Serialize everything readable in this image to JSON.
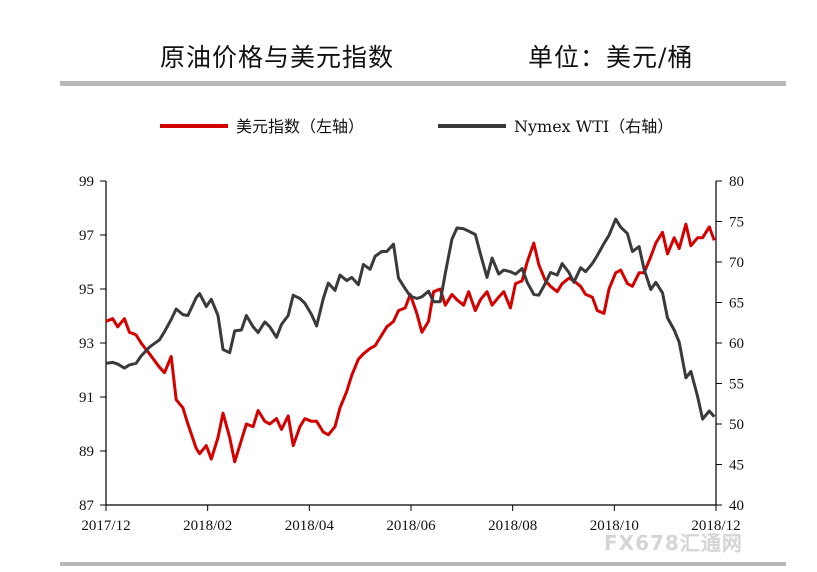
{
  "header": {
    "title": "原油价格与美元指数",
    "unit": "单位：美元/桶"
  },
  "watermark": "FX678汇通网",
  "colors": {
    "usd_index": "#d40000",
    "wti": "#3a3a3a",
    "axis": "#000000",
    "rule": "#b8b8b8"
  },
  "chart_data": {
    "type": "line",
    "x_ticks": [
      "2017/12",
      "2018/02",
      "2018/04",
      "2018/06",
      "2018/08",
      "2018/10",
      "2018/12"
    ],
    "xlim": [
      "2017-12-01",
      "2018-12-01"
    ],
    "y_left": {
      "lim": [
        87,
        99
      ],
      "ticks": [
        87,
        89,
        91,
        93,
        95,
        97,
        99
      ]
    },
    "y_right": {
      "lim": [
        40,
        80
      ],
      "ticks": [
        40,
        45,
        50,
        55,
        60,
        65,
        70,
        75,
        80
      ]
    },
    "grid": false,
    "legend": "top",
    "series": [
      {
        "name": "美元指数（左轴）",
        "axis": "left",
        "x": [
          "2017-12-01",
          "2017-12-05",
          "2017-12-08",
          "2017-12-12",
          "2017-12-15",
          "2017-12-19",
          "2017-12-22",
          "2017-12-27",
          "2018-01-02",
          "2018-01-05",
          "2018-01-09",
          "2018-01-12",
          "2018-01-16",
          "2018-01-19",
          "2018-01-24",
          "2018-01-26",
          "2018-01-30",
          "2018-02-02",
          "2018-02-06",
          "2018-02-09",
          "2018-02-13",
          "2018-02-16",
          "2018-02-20",
          "2018-02-23",
          "2018-02-27",
          "2018-03-02",
          "2018-03-06",
          "2018-03-09",
          "2018-03-13",
          "2018-03-16",
          "2018-03-20",
          "2018-03-23",
          "2018-03-27",
          "2018-03-30",
          "2018-04-03",
          "2018-04-06",
          "2018-04-10",
          "2018-04-13",
          "2018-04-17",
          "2018-04-20",
          "2018-04-24",
          "2018-04-27",
          "2018-05-01",
          "2018-05-04",
          "2018-05-08",
          "2018-05-11",
          "2018-05-15",
          "2018-05-18",
          "2018-05-22",
          "2018-05-25",
          "2018-05-29",
          "2018-06-01",
          "2018-06-05",
          "2018-06-08",
          "2018-06-12",
          "2018-06-15",
          "2018-06-19",
          "2018-06-22",
          "2018-06-26",
          "2018-06-29",
          "2018-07-03",
          "2018-07-06",
          "2018-07-10",
          "2018-07-13",
          "2018-07-17",
          "2018-07-20",
          "2018-07-24",
          "2018-07-27",
          "2018-07-31",
          "2018-08-03",
          "2018-08-07",
          "2018-08-10",
          "2018-08-14",
          "2018-08-17",
          "2018-08-21",
          "2018-08-24",
          "2018-08-28",
          "2018-08-31",
          "2018-09-04",
          "2018-09-07",
          "2018-09-11",
          "2018-09-14",
          "2018-09-18",
          "2018-09-21",
          "2018-09-25",
          "2018-09-28",
          "2018-10-02",
          "2018-10-05",
          "2018-10-09",
          "2018-10-12",
          "2018-10-16",
          "2018-10-19",
          "2018-10-23",
          "2018-10-26",
          "2018-10-30",
          "2018-11-02",
          "2018-11-06",
          "2018-11-09",
          "2018-11-13",
          "2018-11-16",
          "2018-11-20",
          "2018-11-23",
          "2018-11-27",
          "2018-11-30"
        ],
        "values": [
          93.8,
          93.9,
          93.6,
          93.9,
          93.4,
          93.3,
          93.0,
          92.6,
          92.1,
          91.9,
          92.5,
          90.9,
          90.6,
          90.0,
          89.1,
          88.9,
          89.2,
          88.7,
          89.5,
          90.4,
          89.5,
          88.6,
          89.4,
          90.0,
          89.9,
          90.5,
          90.1,
          90.0,
          90.2,
          89.8,
          90.3,
          89.2,
          89.9,
          90.2,
          90.1,
          90.1,
          89.7,
          89.6,
          89.9,
          90.6,
          91.2,
          91.8,
          92.4,
          92.6,
          92.8,
          92.9,
          93.3,
          93.6,
          93.8,
          94.2,
          94.3,
          94.8,
          94.1,
          93.4,
          93.8,
          94.9,
          95.0,
          94.4,
          94.8,
          94.6,
          94.4,
          94.9,
          94.2,
          94.6,
          94.9,
          94.4,
          94.7,
          94.9,
          94.3,
          95.2,
          95.3,
          96.0,
          96.7,
          95.9,
          95.3,
          95.1,
          94.9,
          95.2,
          95.4,
          95.3,
          95.1,
          94.8,
          94.7,
          94.2,
          94.1,
          95.0,
          95.6,
          95.7,
          95.2,
          95.1,
          95.6,
          95.6,
          96.2,
          96.7,
          97.1,
          96.3,
          96.9,
          96.5,
          97.4,
          96.6,
          96.9,
          96.9,
          97.3,
          96.8
        ]
      },
      {
        "name": "Nymex WTI（右轴）",
        "axis": "right",
        "x": [
          "2017-12-01",
          "2017-12-05",
          "2017-12-08",
          "2017-12-12",
          "2017-12-15",
          "2017-12-19",
          "2017-12-22",
          "2017-12-27",
          "2018-01-02",
          "2018-01-05",
          "2018-01-09",
          "2018-01-12",
          "2018-01-16",
          "2018-01-19",
          "2018-01-24",
          "2018-01-26",
          "2018-01-30",
          "2018-02-02",
          "2018-02-06",
          "2018-02-09",
          "2018-02-13",
          "2018-02-16",
          "2018-02-20",
          "2018-02-23",
          "2018-02-27",
          "2018-03-02",
          "2018-03-06",
          "2018-03-09",
          "2018-03-13",
          "2018-03-16",
          "2018-03-20",
          "2018-03-23",
          "2018-03-27",
          "2018-03-30",
          "2018-04-03",
          "2018-04-06",
          "2018-04-10",
          "2018-04-13",
          "2018-04-17",
          "2018-04-20",
          "2018-04-24",
          "2018-04-27",
          "2018-05-01",
          "2018-05-04",
          "2018-05-08",
          "2018-05-11",
          "2018-05-15",
          "2018-05-18",
          "2018-05-22",
          "2018-05-25",
          "2018-05-29",
          "2018-06-01",
          "2018-06-05",
          "2018-06-08",
          "2018-06-12",
          "2018-06-15",
          "2018-06-19",
          "2018-06-22",
          "2018-06-26",
          "2018-06-29",
          "2018-07-03",
          "2018-07-06",
          "2018-07-10",
          "2018-07-13",
          "2018-07-17",
          "2018-07-20",
          "2018-07-24",
          "2018-07-27",
          "2018-07-31",
          "2018-08-03",
          "2018-08-07",
          "2018-08-10",
          "2018-08-14",
          "2018-08-17",
          "2018-08-21",
          "2018-08-24",
          "2018-08-28",
          "2018-08-31",
          "2018-09-04",
          "2018-09-07",
          "2018-09-11",
          "2018-09-14",
          "2018-09-18",
          "2018-09-21",
          "2018-09-25",
          "2018-09-28",
          "2018-10-02",
          "2018-10-05",
          "2018-10-09",
          "2018-10-12",
          "2018-10-16",
          "2018-10-19",
          "2018-10-23",
          "2018-10-26",
          "2018-10-30",
          "2018-11-02",
          "2018-11-06",
          "2018-11-09",
          "2018-11-13",
          "2018-11-16",
          "2018-11-20",
          "2018-11-23",
          "2018-11-27",
          "2018-11-30"
        ],
        "values": [
          57.5,
          57.6,
          57.4,
          56.9,
          57.3,
          57.5,
          58.4,
          59.5,
          60.4,
          61.4,
          62.9,
          64.2,
          63.5,
          63.4,
          65.6,
          66.1,
          64.5,
          65.4,
          63.4,
          59.2,
          58.8,
          61.5,
          61.6,
          63.4,
          62.0,
          61.3,
          62.6,
          62.0,
          60.7,
          62.3,
          63.4,
          65.9,
          65.5,
          64.9,
          63.5,
          62.1,
          65.5,
          67.4,
          66.5,
          68.4,
          67.7,
          68.1,
          67.2,
          69.7,
          69.1,
          70.7,
          71.3,
          71.3,
          72.2,
          68.0,
          66.7,
          65.8,
          65.5,
          65.7,
          66.4,
          65.1,
          65.1,
          68.6,
          72.8,
          74.2,
          74.1,
          73.8,
          73.4,
          71.0,
          68.1,
          70.5,
          68.5,
          69.0,
          68.8,
          68.5,
          69.2,
          67.5,
          66.0,
          65.9,
          67.4,
          68.7,
          68.4,
          69.8,
          68.7,
          67.5,
          69.3,
          68.8,
          69.8,
          70.8,
          72.3,
          73.3,
          75.3,
          74.3,
          73.5,
          71.3,
          71.9,
          69.1,
          66.6,
          67.5,
          66.2,
          63.1,
          61.6,
          60.1,
          55.7,
          56.5,
          53.4,
          50.6,
          51.6,
          50.9
        ]
      }
    ]
  }
}
